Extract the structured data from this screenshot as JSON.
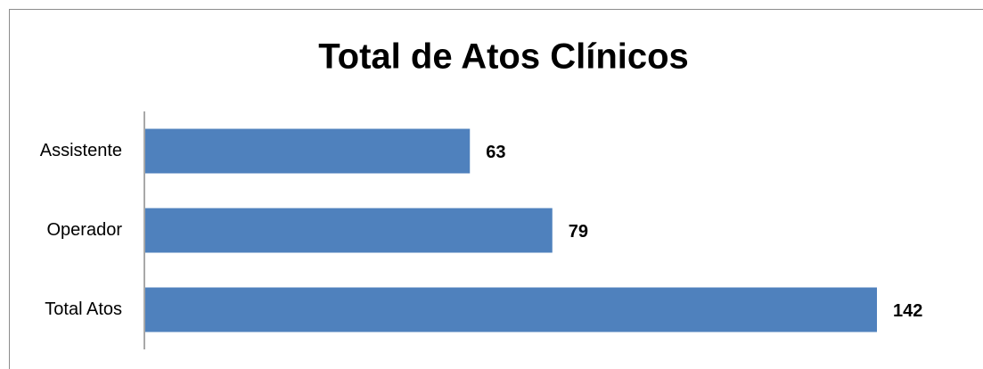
{
  "chart_data": {
    "type": "bar",
    "orientation": "horizontal",
    "title": "Total de Atos Clínicos",
    "categories": [
      "Assistente",
      "Operador",
      "Total Atos"
    ],
    "values": [
      63,
      79,
      142
    ],
    "color": "#4f81bd"
  }
}
